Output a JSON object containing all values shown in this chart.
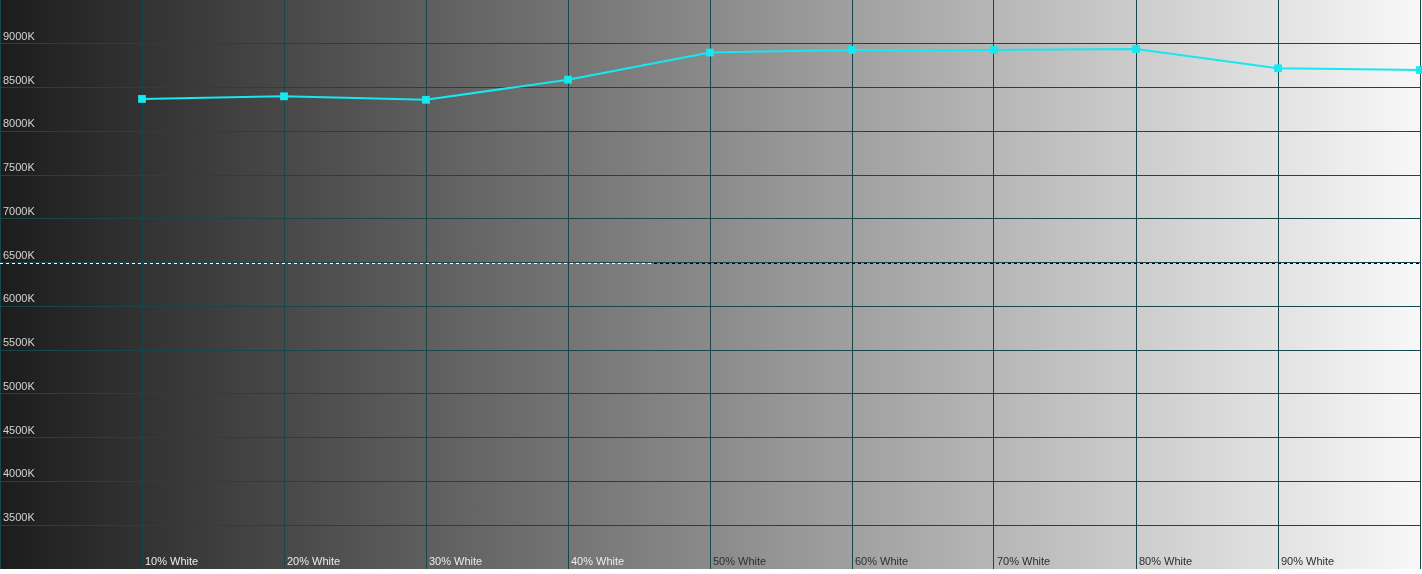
{
  "chart_data": {
    "type": "line",
    "categories": [
      null,
      "10% White",
      "20% White",
      "30% White",
      "40% White",
      "50% White",
      "60% White",
      "70% White",
      "80% White",
      "90% White",
      null
    ],
    "values": [
      null,
      8370,
      8400,
      8360,
      8590,
      8900,
      8930,
      8930,
      8940,
      8720,
      8700
    ],
    "color": "#14e8f0",
    "marker": "square",
    "line_style": "solid",
    "ylim": [
      3000,
      9500
    ],
    "yticks": [
      {
        "value": 3500,
        "label": "3500K"
      },
      {
        "value": 4000,
        "label": "4000K"
      },
      {
        "value": 4500,
        "label": "4500K"
      },
      {
        "value": 5000,
        "label": "5000K"
      },
      {
        "value": 5500,
        "label": "5500K"
      },
      {
        "value": 6000,
        "label": "6000K"
      },
      {
        "value": 6500,
        "label": "6500K"
      },
      {
        "value": 7000,
        "label": "7000K"
      },
      {
        "value": 7500,
        "label": "7500K"
      },
      {
        "value": 8000,
        "label": "8000K"
      },
      {
        "value": 8500,
        "label": "8500K"
      },
      {
        "value": 9000,
        "label": "9000K"
      }
    ],
    "grid": true,
    "ref_lines": [
      {
        "axis": "y",
        "value": 6500,
        "line_style": "dashed"
      }
    ]
  }
}
